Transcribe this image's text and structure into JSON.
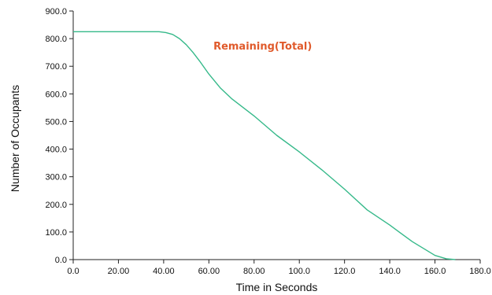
{
  "chart_data": {
    "type": "line",
    "title": "",
    "xlabel": "Time in Seconds",
    "ylabel": "Number of Occupants",
    "xlim": [
      0,
      180
    ],
    "ylim": [
      0,
      900
    ],
    "x_ticks": [
      "0.0",
      "20.00",
      "40.00",
      "60.00",
      "80.00",
      "100.0",
      "120.0",
      "140.0",
      "160.0",
      "180.0"
    ],
    "y_ticks": [
      "0.0",
      "100.0",
      "200.0",
      "300.0",
      "400.0",
      "500.0",
      "600.0",
      "700.0",
      "800.0",
      "900.0"
    ],
    "grid": false,
    "legend": "none",
    "annotation": {
      "text": "Remaining(Total)",
      "x": 62,
      "y": 760,
      "color": "#e05a2b"
    },
    "series": [
      {
        "color": "#36b98a",
        "x": [
          0,
          10,
          20,
          30,
          38,
          41,
          44,
          47,
          50,
          53,
          56,
          60,
          65,
          70,
          80,
          90,
          100,
          110,
          120,
          130,
          140,
          150,
          160,
          165,
          169
        ],
        "y": [
          825,
          825,
          825,
          825,
          825,
          822,
          815,
          800,
          778,
          750,
          718,
          672,
          622,
          583,
          520,
          450,
          390,
          325,
          255,
          180,
          125,
          65,
          15,
          3,
          0
        ]
      }
    ]
  }
}
